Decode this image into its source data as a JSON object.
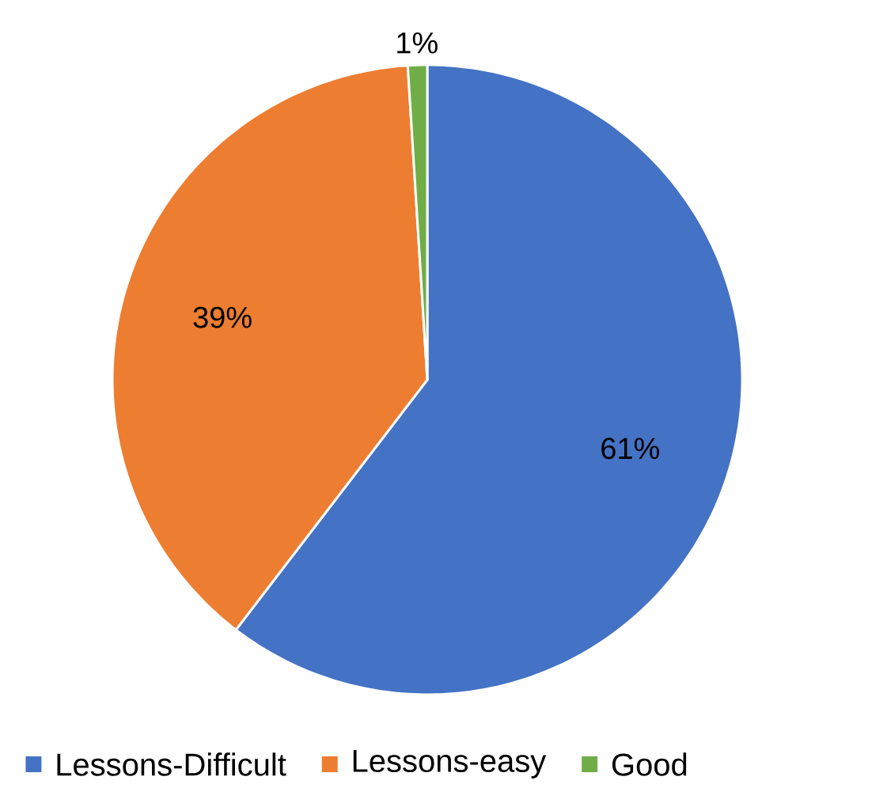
{
  "chart_data": {
    "type": "pie",
    "categories": [
      "Lessons-Difficult",
      "Lessons-easy",
      "Good"
    ],
    "values": [
      61,
      39,
      1
    ],
    "colors": [
      "#4472c4",
      "#ed7d31",
      "#70ad47"
    ],
    "value_labels": [
      "61%",
      "39%",
      "1%"
    ],
    "legend": "bottom"
  }
}
